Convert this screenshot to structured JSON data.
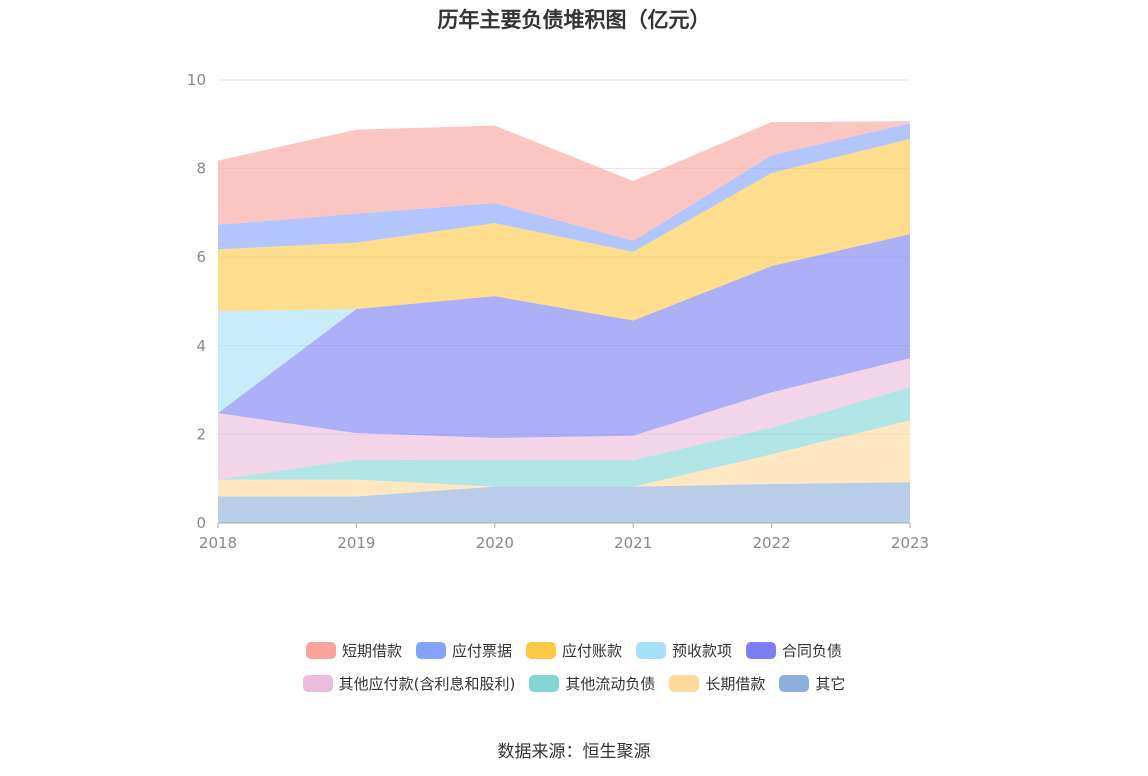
{
  "title": "历年主要负债堆积图（亿元）",
  "source": "数据来源：恒生聚源",
  "chart_data": {
    "type": "area",
    "stacked": true,
    "title": "历年主要负债堆积图（亿元）",
    "xlabel": "",
    "ylabel": "",
    "categories": [
      "2018",
      "2019",
      "2020",
      "2021",
      "2022",
      "2023"
    ],
    "ylim": [
      0,
      10
    ],
    "yticks": [
      "0",
      "2",
      "4",
      "6",
      "8",
      "10"
    ],
    "grid": true,
    "legend_position": "bottom",
    "series": [
      {
        "name": "其它",
        "color": "#8eaedb",
        "values": [
          0.6,
          0.6,
          0.82,
          0.82,
          0.88,
          0.92
        ]
      },
      {
        "name": "长期借款",
        "color": "#fdd99b",
        "values": [
          0.38,
          0.38,
          0,
          0,
          0.67,
          1.4
        ]
      },
      {
        "name": "其他流动负债",
        "color": "#83d7d6",
        "values": [
          0,
          0.45,
          0.6,
          0.6,
          0.6,
          0.75
        ]
      },
      {
        "name": "其他应付款(含利息和股利)",
        "color": "#ebbcdc",
        "values": [
          1.5,
          0.6,
          0.5,
          0.55,
          0.8,
          0.65
        ]
      },
      {
        "name": "合同负债",
        "color": "#7a80f2",
        "values": [
          0,
          2.8,
          3.2,
          2.6,
          2.85,
          2.8
        ]
      },
      {
        "name": "预收款项",
        "color": "#a7e1f9",
        "values": [
          2.3,
          0,
          0,
          0,
          0,
          0
        ]
      },
      {
        "name": "应付账款",
        "color": "#fdc945",
        "values": [
          1.4,
          1.5,
          1.65,
          1.55,
          2.1,
          2.15
        ]
      },
      {
        "name": "应付票据",
        "color": "#85a2fb",
        "values": [
          0.55,
          0.65,
          0.45,
          0.25,
          0.4,
          0.35
        ]
      },
      {
        "name": "短期借款",
        "color": "#f9a39c",
        "values": [
          1.45,
          1.9,
          1.75,
          1.35,
          0.75,
          0.05
        ]
      }
    ]
  },
  "legend_rows": [
    [
      {
        "label": "短期借款",
        "color": "#f9a39c"
      },
      {
        "label": "应付票据",
        "color": "#85a2fb"
      },
      {
        "label": "应付账款",
        "color": "#fdc945"
      },
      {
        "label": "预收款项",
        "color": "#a7e1f9"
      },
      {
        "label": "合同负债",
        "color": "#7a80f2"
      }
    ],
    [
      {
        "label": "其他应付款(含利息和股利)",
        "color": "#ebbcdc"
      },
      {
        "label": "其他流动负债",
        "color": "#83d7d6"
      },
      {
        "label": "长期借款",
        "color": "#fdd99b"
      },
      {
        "label": "其它",
        "color": "#8eaedb"
      }
    ]
  ]
}
